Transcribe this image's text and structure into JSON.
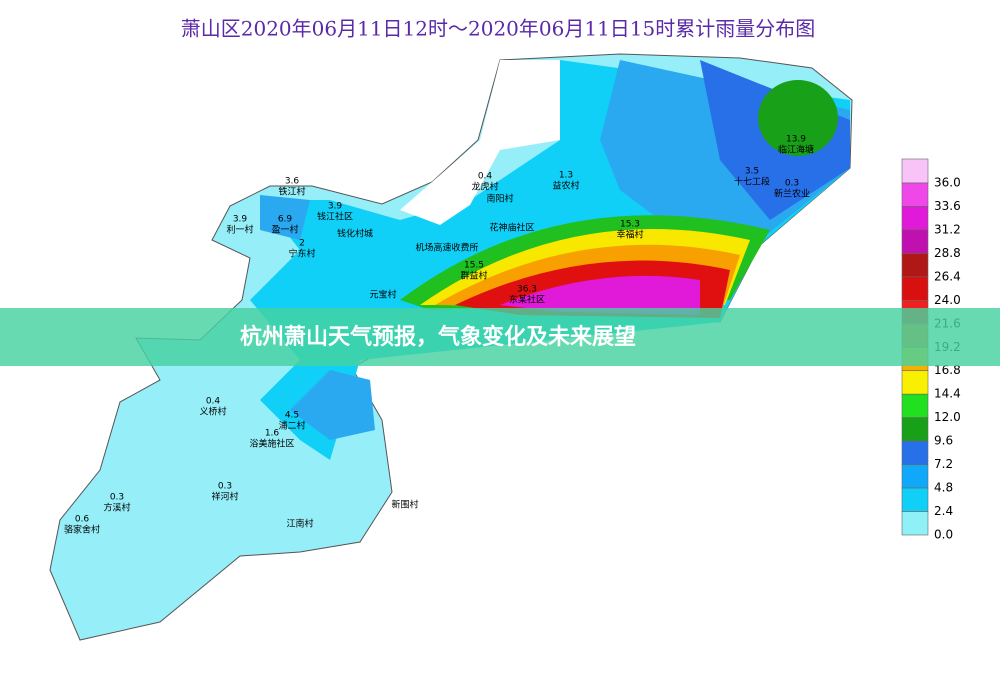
{
  "title": "萧山区2020年06月11日12时～2020年06月11日15时累计雨量分布图",
  "banner": "杭州萧山天气预报，气象变化及未来展望",
  "legend": [
    {
      "label": "36.0",
      "color": "#f8c4f8"
    },
    {
      "label": "33.6",
      "color": "#f048e8"
    },
    {
      "label": "31.2",
      "color": "#e01ad8"
    },
    {
      "label": "28.8",
      "color": "#c010b0"
    },
    {
      "label": "26.4",
      "color": "#b01818"
    },
    {
      "label": "24.0",
      "color": "#d81010"
    },
    {
      "label": "21.6",
      "color": "#f02020"
    },
    {
      "label": "19.2",
      "color": "#f07010"
    },
    {
      "label": "16.8",
      "color": "#f8b000"
    },
    {
      "label": "14.4",
      "color": "#f8f000"
    },
    {
      "label": "12.0",
      "color": "#20e020"
    },
    {
      "label": "9.6",
      "color": "#18a018"
    },
    {
      "label": "7.2",
      "color": "#2870e8"
    },
    {
      "label": "4.8",
      "color": "#10a8f8"
    },
    {
      "label": "2.4",
      "color": "#10d0f8"
    },
    {
      "label": "0.0",
      "color": "#90f0f8"
    }
  ],
  "stations": [
    {
      "name": "龙虎村",
      "value": "0.4"
    },
    {
      "name": "益农村",
      "value": "1.3"
    },
    {
      "name": "十七工段",
      "value": "3.5"
    },
    {
      "name": "临江海塘",
      "value": "13.9"
    },
    {
      "name": "新兰农业",
      "value": "0.3"
    },
    {
      "name": "幸福村",
      "value": "15.3"
    },
    {
      "name": "群益村",
      "value": "15.5"
    },
    {
      "name": "东某社区",
      "value": "36.3"
    },
    {
      "name": "义桥村",
      "value": "0.4"
    },
    {
      "name": "浦二村",
      "value": "4.5"
    },
    {
      "name": "浴美施社区",
      "value": "1.6"
    },
    {
      "name": "方溪村",
      "value": "0.3"
    },
    {
      "name": "祥河村",
      "value": "0.3"
    },
    {
      "name": "骆家舍村",
      "value": "0.6"
    },
    {
      "name": "宁东村",
      "value": "2"
    },
    {
      "name": "盈一村",
      "value": "6.9"
    },
    {
      "name": "利一村",
      "value": "3.9"
    },
    {
      "name": "铁江村",
      "value": "3.6"
    },
    {
      "name": "钱江社区",
      "value": "3.9"
    }
  ],
  "places": [
    "花神庙社区",
    "机场高速收费所",
    "钱化村城",
    "元宝村",
    "江南村",
    "南阳村",
    "新围村"
  ]
}
